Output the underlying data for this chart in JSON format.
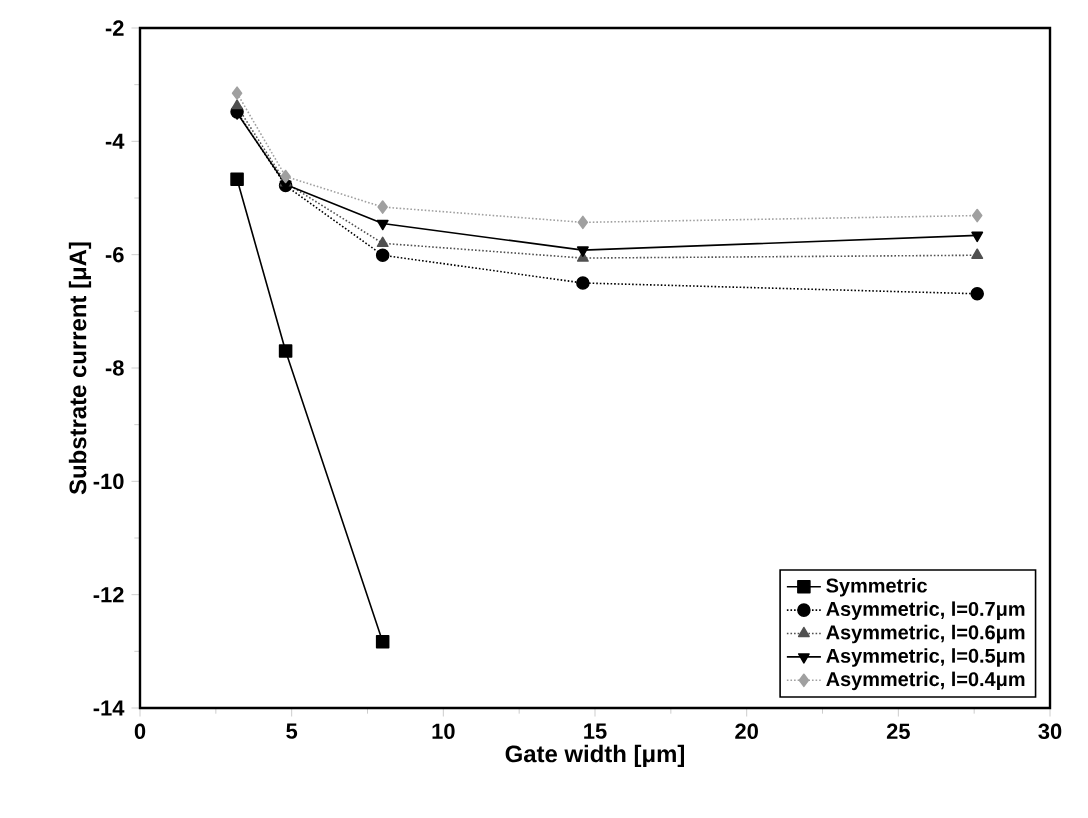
{
  "chart_data": {
    "type": "line",
    "xlabel": "Gate width [μm]",
    "ylabel": "Substrate current [μA]",
    "x": [
      3.2,
      4.8,
      8.0,
      14.6,
      27.6
    ],
    "series": [
      {
        "name": "Symmetric",
        "color": "#000000",
        "marker": "square",
        "line_style": "solid",
        "values": [
          -4.67,
          -7.7,
          -12.83,
          null,
          null
        ]
      },
      {
        "name": "Asymmetric, l=0.7μm",
        "color": "#000000",
        "marker": "circle",
        "line_style": "dotted",
        "values": [
          -3.48,
          -4.78,
          -6.01,
          -6.5,
          -6.69
        ]
      },
      {
        "name": "Asymmetric, l=0.6μm",
        "color": "#505050",
        "marker": "triangle",
        "line_style": "dotted",
        "values": [
          -3.38,
          -4.73,
          -5.8,
          -6.06,
          -6.01
        ]
      },
      {
        "name": "Asymmetric, l=0.5μm",
        "color": "#000000",
        "marker": "triangle_down",
        "line_style": "solid",
        "values": [
          -3.5,
          -4.76,
          -5.45,
          -5.92,
          -5.66
        ]
      },
      {
        "name": "Asymmetric, l=0.4μm",
        "color": "#a0a0a0",
        "marker": "diamond",
        "line_style": "dotted",
        "values": [
          -3.15,
          -4.62,
          -5.16,
          -5.43,
          -5.31
        ]
      }
    ],
    "xlim": [
      0,
      30
    ],
    "xticks": [
      0,
      5,
      10,
      15,
      20,
      25,
      30
    ],
    "ylim": [
      -14,
      -2
    ],
    "yticks": [
      -14,
      -12,
      -10,
      -8,
      -6,
      -4,
      -2
    ],
    "grid": false,
    "legend": "bottom right"
  }
}
